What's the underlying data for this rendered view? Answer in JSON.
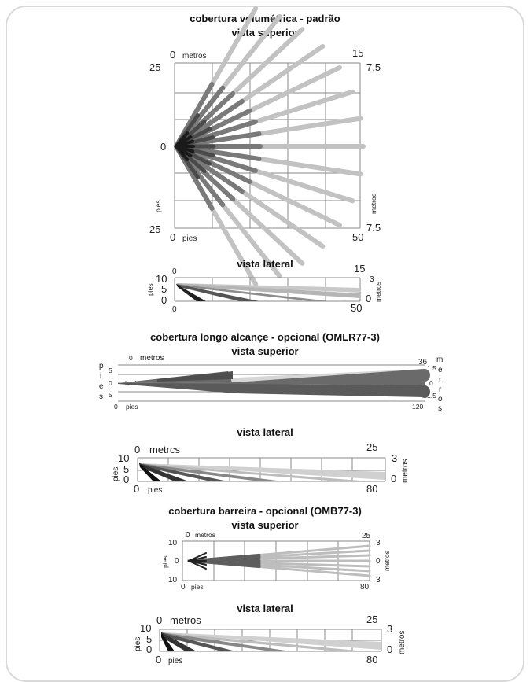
{
  "sections": [
    {
      "title": "cobertura volumétrica - padrão",
      "top": {
        "subtitle": "vista superior",
        "tl_zero": "0",
        "tl_unit": "metros",
        "tr": "15",
        "tr_m": "7.5",
        "left_top": "25",
        "left_mid": "0",
        "left_bot": "25",
        "left_unit": "pies",
        "right_unit": "metroe",
        "bl_zero": "0",
        "bl_unit": "pies",
        "br": "50",
        "br_m": "7.5"
      },
      "side": {
        "subtitle": "vista lateral",
        "tl_zero": "0",
        "tr": "15",
        "tr_m": "3",
        "left_10": "10",
        "left_5": "5",
        "left_0": "0",
        "left_unit": "pies",
        "right_0": "0",
        "right_unit": "metros",
        "bl_zero": "0",
        "br": "50"
      }
    },
    {
      "title": "cobertura longo alcançe - opcional (OMLR77-3)",
      "top": {
        "subtitle": "vista superior",
        "tl_zero": "0",
        "tl_unit": "metros",
        "tr": "36",
        "r_top": "1.5",
        "r_mid": "0",
        "r_bot": "1.5",
        "left_5a": "5",
        "left_0": "0",
        "left_5b": "5",
        "left_letters": [
          "p",
          "i",
          "e",
          "s"
        ],
        "right_letters": [
          "m",
          "e",
          "t",
          "r",
          "o",
          "s"
        ],
        "bl_zero": "0",
        "bl_unit": "pies",
        "br": "120"
      },
      "side": {
        "subtitle": "vista lateral",
        "tl_zero": "0",
        "tl_unit": "metrcs",
        "tr": "25",
        "tr_m": "3",
        "left_10": "10",
        "left_5": "5",
        "left_0": "0",
        "left_unit": "pies",
        "right_0": "0",
        "right_unit": "metros",
        "bl_zero": "0",
        "bl_unit": "pies",
        "br": "80"
      }
    },
    {
      "title": "cobertura barreira - opcional (OMB77-3)",
      "top": {
        "subtitle": "vista superior",
        "tl_zero": "0",
        "tl_unit": "metros",
        "tr": "25",
        "left_10a": "10",
        "left_0": "0",
        "left_10b": "10",
        "left_unit": "pies",
        "r_top": "3",
        "r_mid": "0",
        "r_bot": "3",
        "right_unit": "metros",
        "bl_zero": "0",
        "bl_unit": "pies",
        "br": "80"
      },
      "side": {
        "subtitle": "vista lateral",
        "tl_zero": "0",
        "tl_unit": "metros",
        "tr": "25",
        "tr_m": "3",
        "left_10": "10",
        "left_5": "5",
        "left_0": "0",
        "left_unit": "pies",
        "right_0": "0",
        "right_unit": "metros",
        "bl_zero": "0",
        "bl_unit": "pies",
        "br": "80"
      }
    }
  ],
  "colors": {
    "beam_dark": "#2b2b2b",
    "beam_mid": "#6e6e6e",
    "beam_light": "#bdbdbd",
    "grid": "#8a8a8a",
    "frame": "#d9d9d9"
  }
}
